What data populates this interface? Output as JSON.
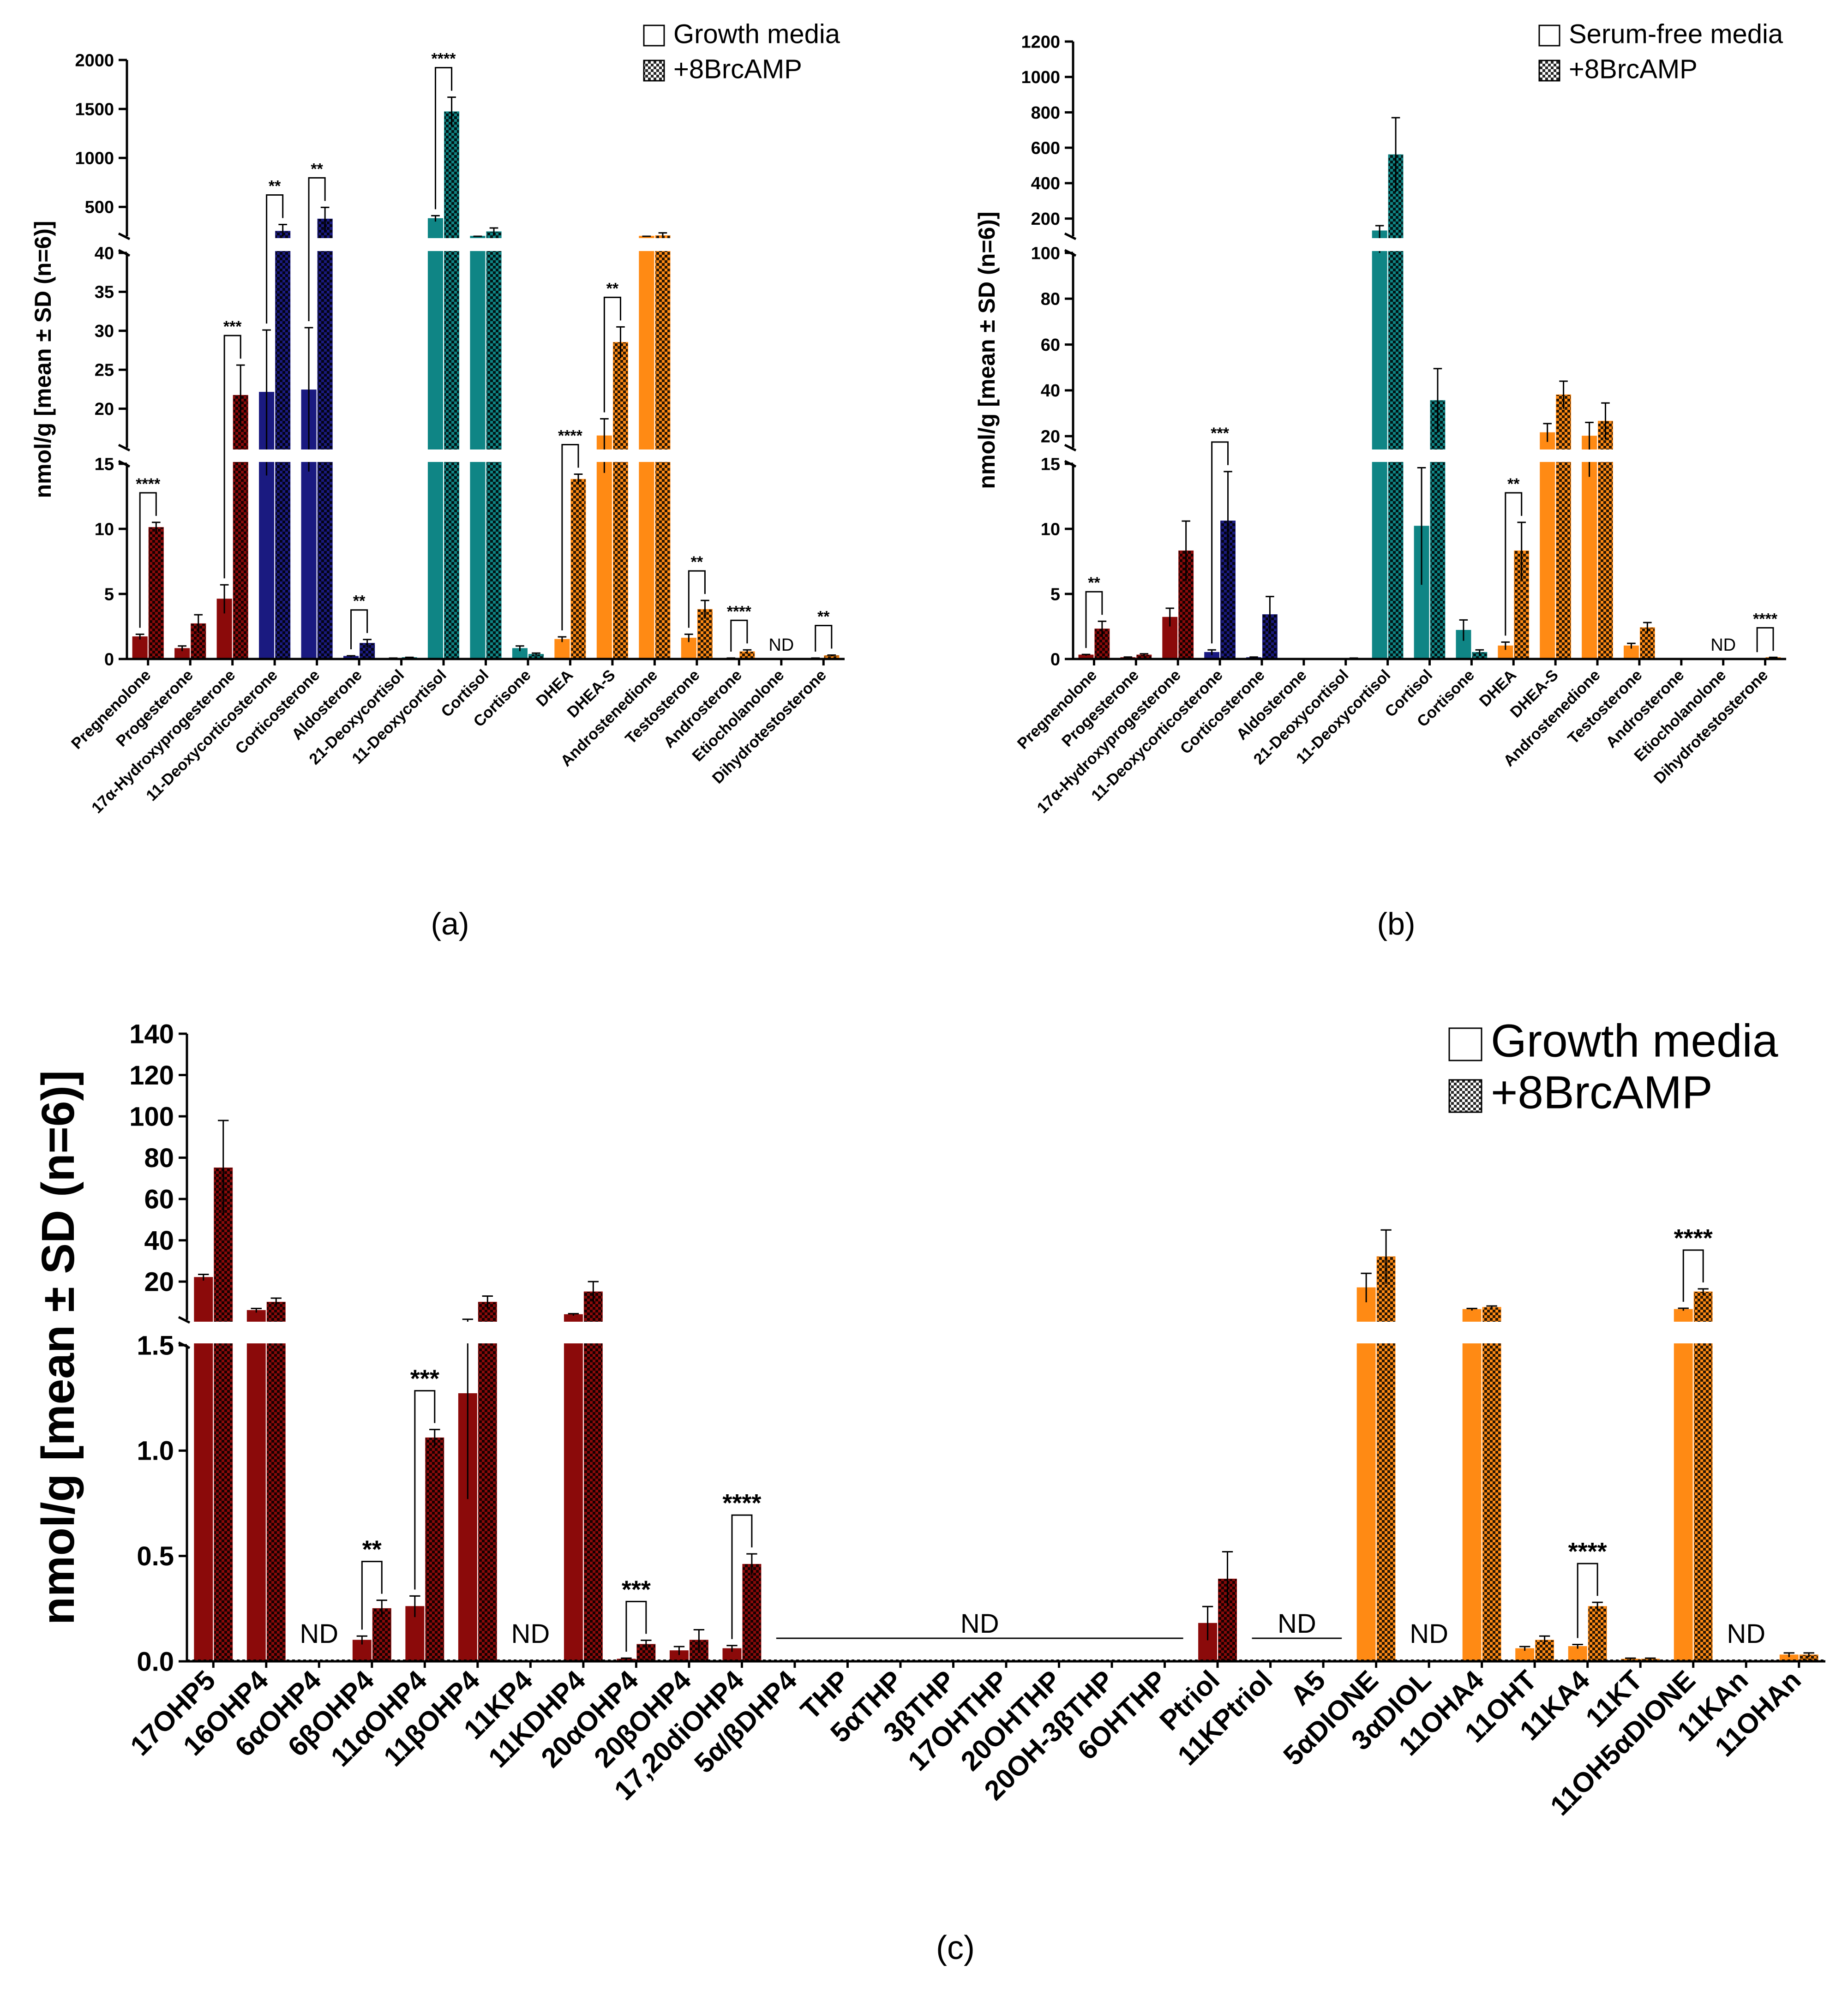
{
  "colors": {
    "burgundy": "#8b0a0a",
    "navy": "#1a1a80",
    "teal": "#0f8585",
    "orange": "#ff8a14"
  },
  "chart_data": [
    {
      "panel": "a",
      "type": "bar",
      "caption": "(a)",
      "ylabel": "nmol/g [mean ± SD (n=6)]",
      "legend": [
        "Growth media",
        "+8BrcAMP"
      ],
      "legend_position": "top-right",
      "segments": [
        {
          "range": [
            0,
            15
          ],
          "ticks": [
            "0",
            "5",
            "10",
            "15"
          ],
          "tick_values": [
            0,
            5,
            10,
            15
          ]
        },
        {
          "range": [
            15,
            40
          ],
          "ticks": [
            "15",
            "20",
            "25",
            "30",
            "35",
            "40"
          ],
          "tick_values": [
            15,
            20,
            25,
            30,
            35,
            40
          ]
        },
        {
          "range": [
            200,
            2000
          ],
          "ticks": [
            "500",
            "1000",
            "1500",
            "2000"
          ],
          "tick_values": [
            500,
            1000,
            1500,
            2000
          ]
        }
      ],
      "categories": [
        "Pregnenolone",
        "Progesterone",
        "17α-Hydroxyprogesterone",
        "11-Deoxycorticosterone",
        "Corticosterone",
        "Aldosterone",
        "21-Deoxycortisol",
        "11-Deoxycortisol",
        "Cortisol",
        "Cortisone",
        "DHEA",
        "DHEA-S",
        "Androstenedione",
        "Testosterone",
        "Androsterone",
        "Etiocholanolone",
        "Dihydrotestosterone"
      ],
      "category_colors": [
        "burgundy",
        "burgundy",
        "burgundy",
        "navy",
        "navy",
        "navy",
        "teal",
        "teal",
        "teal",
        "teal",
        "orange",
        "orange",
        "orange",
        "orange",
        "orange",
        "orange",
        "orange"
      ],
      "series": [
        {
          "name": "Growth media",
          "values": [
            1.7,
            0.8,
            4.6,
            22.1,
            22.4,
            0.2,
            0.05,
            380,
            170,
            0.8,
            1.5,
            16.5,
            150,
            1.6,
            0.05,
            0,
            0.05
          ],
          "errors": [
            0.2,
            0.2,
            1.1,
            8.0,
            8.0,
            0.05,
            0.02,
            30,
            10,
            0.2,
            0.2,
            2.2,
            15,
            0.3,
            0.02,
            0,
            0.02
          ]
        },
        {
          "name": "+8BrcAMP",
          "values": [
            10.1,
            2.7,
            21.7,
            250,
            375,
            1.2,
            0.1,
            1470,
            245,
            0.35,
            13.8,
            28.5,
            205,
            3.8,
            0.55,
            0,
            0.25
          ],
          "errors": [
            0.4,
            0.7,
            3.9,
            70,
            120,
            0.3,
            0.03,
            150,
            40,
            0.1,
            0.4,
            2.0,
            30,
            0.7,
            0.15,
            0,
            0.05
          ]
        }
      ],
      "significance": [
        {
          "category": "Pregnenolone",
          "label": "****"
        },
        {
          "category": "17α-Hydroxyprogesterone",
          "label": "***"
        },
        {
          "category": "11-Deoxycorticosterone",
          "label": "**"
        },
        {
          "category": "Corticosterone",
          "label": "**"
        },
        {
          "category": "Aldosterone",
          "label": "**"
        },
        {
          "category": "11-Deoxycortisol",
          "label": "****"
        },
        {
          "category": "DHEA",
          "label": "****"
        },
        {
          "category": "DHEA-S",
          "label": "**"
        },
        {
          "category": "Testosterone",
          "label": "**"
        },
        {
          "category": "Androsterone",
          "label": "****"
        },
        {
          "category": "Dihydrotestosterone",
          "label": "**"
        }
      ],
      "not_detected": [
        {
          "category": "Etiocholanolone",
          "label": "ND"
        }
      ]
    },
    {
      "panel": "b",
      "type": "bar",
      "caption": "(b)",
      "ylabel": "nmol/g [mean ± SD (n=6)]",
      "legend": [
        "Serum-free media",
        "+8BrcAMP"
      ],
      "legend_position": "top-right",
      "segments": [
        {
          "range": [
            0,
            15
          ],
          "ticks": [
            "0",
            "5",
            "10",
            "15"
          ],
          "tick_values": [
            0,
            5,
            10,
            15
          ]
        },
        {
          "range": [
            15,
            100
          ],
          "ticks": [
            "20",
            "40",
            "60",
            "80",
            "100"
          ],
          "tick_values": [
            20,
            40,
            60,
            80,
            100
          ]
        },
        {
          "range": [
            100,
            1200
          ],
          "ticks": [
            "200",
            "400",
            "600",
            "800",
            "1000",
            "1200"
          ],
          "tick_values": [
            200,
            400,
            600,
            800,
            1000,
            1200
          ]
        }
      ],
      "categories": [
        "Pregnenolone",
        "Progesterone",
        "17α-Hydroxyprogesterone",
        "11-Deoxycorticosterone",
        "Corticosterone",
        "Aldosterone",
        "21-Deoxycortisol",
        "11-Deoxycortisol",
        "Cortisol",
        "Cortisone",
        "DHEA",
        "DHEA-S",
        "Androstenedione",
        "Testosterone",
        "Androsterone",
        "Etiocholanolone",
        "Dihydrotestosterone"
      ],
      "category_colors": [
        "burgundy",
        "burgundy",
        "burgundy",
        "navy",
        "navy",
        "navy",
        "teal",
        "teal",
        "teal",
        "teal",
        "orange",
        "orange",
        "orange",
        "orange",
        "orange",
        "orange",
        "orange"
      ],
      "series": [
        {
          "name": "Serum-free media",
          "values": [
            0.3,
            0.1,
            3.2,
            0.5,
            0.1,
            0.02,
            0.02,
            130,
            10.2,
            2.2,
            1.0,
            21.5,
            20,
            1.0,
            0.02,
            0,
            0.02
          ],
          "errors": [
            0.05,
            0.05,
            0.7,
            0.2,
            0.05,
            0.01,
            0.01,
            30,
            4.5,
            0.8,
            0.3,
            4,
            6,
            0.2,
            0.01,
            0,
            0.01
          ]
        },
        {
          "name": "+8BrcAMP",
          "values": [
            2.3,
            0.3,
            8.3,
            10.6,
            3.4,
            0.02,
            0.05,
            560,
            35.5,
            0.5,
            8.3,
            38,
            26.5,
            2.4,
            0.02,
            0,
            0.1
          ],
          "errors": [
            0.6,
            0.1,
            2.3,
            3.8,
            1.4,
            0.01,
            0.02,
            210,
            14,
            0.2,
            2.2,
            6,
            8,
            0.4,
            0.01,
            0,
            0.03
          ]
        }
      ],
      "significance": [
        {
          "category": "Pregnenolone",
          "label": "**"
        },
        {
          "category": "11-Deoxycorticosterone",
          "label": "***"
        },
        {
          "category": "DHEA",
          "label": "**"
        },
        {
          "category": "Dihydrotestosterone",
          "label": "****"
        }
      ],
      "not_detected": [
        {
          "category": "Etiocholanolone",
          "label": "ND"
        }
      ]
    },
    {
      "panel": "c",
      "type": "bar",
      "caption": "(c)",
      "ylabel": "nmol/g [mean ± SD (n=6)]",
      "legend": [
        "Growth media",
        "+8BrcAMP"
      ],
      "legend_position": "top-right",
      "segments": [
        {
          "range": [
            0,
            1.5
          ],
          "ticks": [
            "0.0",
            "0.5",
            "1.0",
            "1.5"
          ],
          "tick_values": [
            0,
            0.5,
            1.0,
            1.5
          ]
        },
        {
          "range": [
            1.5,
            140
          ],
          "ticks": [
            "20",
            "40",
            "60",
            "80",
            "100",
            "120",
            "140"
          ],
          "tick_values": [
            20,
            40,
            60,
            80,
            100,
            120,
            140
          ]
        }
      ],
      "categories": [
        "17OHP5",
        "16OHP4",
        "6αOHP4",
        "6βOHP4",
        "11αOHP4",
        "11βOHP4",
        "11KP4",
        "11KDHP4",
        "20αOHP4",
        "20βOHP4",
        "17,20diOHP4",
        "5α/βDHP4",
        "THP",
        "5αTHP",
        "3βTHP",
        "17OHTHP",
        "20OHTHP",
        "20OH-3βTHP",
        "6OHTHP",
        "Ptriol",
        "11KPtriol",
        "A5",
        "5αDIONE",
        "3αDIOL",
        "11OHA4",
        "11OHT",
        "11KA4",
        "11KT",
        "11OH5αDIONE",
        "11KAn",
        "11OHAn"
      ],
      "category_colors": [
        "burgundy",
        "burgundy",
        "burgundy",
        "burgundy",
        "burgundy",
        "burgundy",
        "burgundy",
        "burgundy",
        "burgundy",
        "burgundy",
        "burgundy",
        "burgundy",
        "burgundy",
        "burgundy",
        "burgundy",
        "burgundy",
        "burgundy",
        "burgundy",
        "burgundy",
        "burgundy",
        "burgundy",
        "orange",
        "orange",
        "orange",
        "orange",
        "orange",
        "orange",
        "orange",
        "orange",
        "orange",
        "orange"
      ],
      "series": [
        {
          "name": "Growth media",
          "values": [
            22,
            6,
            null,
            0.1,
            0.26,
            1.27,
            null,
            4,
            0.01,
            0.05,
            0.06,
            null,
            null,
            null,
            null,
            null,
            null,
            null,
            null,
            0.18,
            null,
            null,
            17,
            null,
            6.5,
            0.06,
            0.07,
            0.01,
            6.5,
            null,
            0.03
          ],
          "errors": [
            1.5,
            1.0,
            null,
            0.02,
            0.05,
            0.5,
            null,
            0.5,
            0.005,
            0.02,
            0.015,
            null,
            null,
            null,
            null,
            null,
            null,
            null,
            null,
            0.08,
            null,
            null,
            7,
            null,
            0.5,
            0.01,
            0.01,
            0.005,
            0.6,
            null,
            0.01
          ]
        },
        {
          "name": "+8BrcAMP",
          "values": [
            75,
            10,
            null,
            0.25,
            1.06,
            10,
            null,
            15,
            0.08,
            0.1,
            0.46,
            null,
            null,
            null,
            null,
            null,
            null,
            null,
            null,
            0.39,
            null,
            null,
            32,
            null,
            7.5,
            0.1,
            0.26,
            0.01,
            15,
            null,
            0.03
          ],
          "errors": [
            23,
            2.0,
            null,
            0.04,
            0.04,
            3,
            null,
            5,
            0.02,
            0.05,
            0.05,
            null,
            null,
            null,
            null,
            null,
            null,
            null,
            null,
            0.13,
            null,
            null,
            13,
            null,
            0.7,
            0.02,
            0.02,
            0.005,
            1.5,
            null,
            0.01
          ]
        }
      ],
      "significance": [
        {
          "category": "6βOHP4",
          "label": "**"
        },
        {
          "category": "11αOHP4",
          "label": "***"
        },
        {
          "category": "20αOHP4",
          "label": "***"
        },
        {
          "category": "17,20diOHP4",
          "label": "****"
        },
        {
          "category": "11KA4",
          "label": "****"
        },
        {
          "category": "11OH5αDIONE",
          "label": "****"
        }
      ],
      "not_detected": [
        {
          "category": "6αOHP4",
          "label": "ND"
        },
        {
          "category": "11KP4",
          "label": "ND"
        },
        {
          "from": "5α/βDHP4",
          "to": "6OHTHP",
          "label": "ND"
        },
        {
          "from": "11KPtriol",
          "to": "A5",
          "label": "ND"
        },
        {
          "category": "3αDIOL",
          "label": "ND"
        },
        {
          "category": "11KAn",
          "label": "ND"
        }
      ]
    }
  ]
}
